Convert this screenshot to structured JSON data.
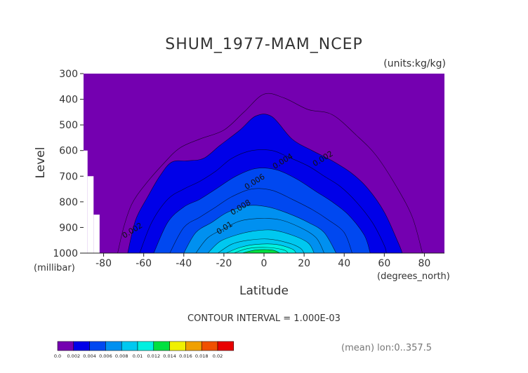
{
  "chart_data": {
    "type": "heatmap",
    "title": "SHUM_1977-MAM_NCEP",
    "units_label": "(units:kg/kg)",
    "ylabel": "Level",
    "yunit_label": "(millibar)",
    "xlabel": "Latitude",
    "xunit_label": "(degrees_north)",
    "xlim": [
      -90,
      90
    ],
    "ylim": [
      300,
      1000
    ],
    "y_inverted": true,
    "xticks": [
      "-80",
      "-60",
      "-40",
      "-20",
      "0",
      "20",
      "40",
      "60",
      "80"
    ],
    "xtick_values": [
      -80,
      -60,
      -40,
      -20,
      0,
      20,
      40,
      60,
      80
    ],
    "yticks": [
      "300",
      "400",
      "500",
      "600",
      "700",
      "800",
      "900",
      "1000"
    ],
    "ytick_values": [
      300,
      400,
      500,
      600,
      700,
      800,
      900,
      1000
    ],
    "contour_interval_text": "CONTOUR INTERVAL = 1.000E-03",
    "footnote": "(mean) lon:0..357.5",
    "levels": [
      0.0,
      0.002,
      0.004,
      0.006,
      0.008,
      0.01,
      0.012,
      0.014,
      0.016,
      0.018,
      0.02
    ],
    "colorbar_labels": [
      "0.0",
      "0.002",
      "0.004",
      "0.006",
      "0.008",
      "0.01",
      "0.012",
      "0.014",
      "0.016",
      "0.018",
      "0.02"
    ],
    "colors": [
      "#7400b0",
      "#0000e8",
      "#0048f0",
      "#0090f0",
      "#00c8f0",
      "#00f0e0",
      "#00e040",
      "#f0f000",
      "#f0a000",
      "#f05000",
      "#e80000"
    ],
    "contour_labels": [
      {
        "text": "0.002",
        "lat": -65,
        "lev": 920
      },
      {
        "text": "0.002",
        "lat": 30,
        "lev": 640
      },
      {
        "text": "0.004",
        "lat": 10,
        "lev": 650
      },
      {
        "text": "0.006",
        "lat": -4,
        "lev": 730
      },
      {
        "text": "0.008",
        "lat": -11,
        "lev": 830
      },
      {
        "text": "0.01",
        "lat": -19,
        "lev": 910
      }
    ],
    "surface_mask": [
      {
        "lat0": -90,
        "lat1": -88,
        "lev_top": 600
      },
      {
        "lat0": -88,
        "lat1": -85,
        "lev_top": 700
      },
      {
        "lat0": -85,
        "lat1": -82,
        "lev_top": 850
      }
    ],
    "profiles": [
      {
        "level": 0.001,
        "points": [
          [
            -73,
            1000
          ],
          [
            -70,
            900
          ],
          [
            -66,
            810
          ],
          [
            -60,
            740
          ],
          [
            -50,
            650
          ],
          [
            -42,
            590
          ],
          [
            -32,
            555
          ],
          [
            -20,
            520
          ],
          [
            -10,
            450
          ],
          [
            0,
            380
          ],
          [
            10,
            395
          ],
          [
            22,
            440
          ],
          [
            34,
            460
          ],
          [
            46,
            540
          ],
          [
            56,
            620
          ],
          [
            66,
            740
          ],
          [
            74,
            860
          ],
          [
            79,
            1000
          ]
        ]
      },
      {
        "level": 0.002,
        "points": [
          [
            -68,
            1000
          ],
          [
            -64,
            870
          ],
          [
            -58,
            780
          ],
          [
            -52,
            700
          ],
          [
            -46,
            645
          ],
          [
            -38,
            640
          ],
          [
            -30,
            630
          ],
          [
            -22,
            580
          ],
          [
            -12,
            520
          ],
          [
            -4,
            465
          ],
          [
            4,
            468
          ],
          [
            14,
            555
          ],
          [
            24,
            600
          ],
          [
            34,
            640
          ],
          [
            44,
            690
          ],
          [
            52,
            750
          ],
          [
            60,
            840
          ],
          [
            67,
            960
          ],
          [
            69,
            1000
          ]
        ]
      },
      {
        "level": 0.003,
        "points": [
          [
            -62,
            1000
          ],
          [
            -56,
            880
          ],
          [
            -48,
            790
          ],
          [
            -40,
            750
          ],
          [
            -32,
            720
          ],
          [
            -24,
            680
          ],
          [
            -16,
            630
          ],
          [
            -6,
            600
          ],
          [
            4,
            600
          ],
          [
            12,
            625
          ],
          [
            22,
            660
          ],
          [
            30,
            700
          ],
          [
            38,
            740
          ],
          [
            46,
            800
          ],
          [
            54,
            880
          ],
          [
            60,
            970
          ],
          [
            61,
            1000
          ]
        ]
      },
      {
        "level": 0.004,
        "points": [
          [
            -55,
            1000
          ],
          [
            -48,
            880
          ],
          [
            -40,
            820
          ],
          [
            -32,
            790
          ],
          [
            -24,
            750
          ],
          [
            -14,
            700
          ],
          [
            -4,
            670
          ],
          [
            6,
            675
          ],
          [
            16,
            710
          ],
          [
            26,
            760
          ],
          [
            34,
            800
          ],
          [
            42,
            850
          ],
          [
            50,
            930
          ],
          [
            53,
            1000
          ]
        ]
      },
      {
        "level": 0.005,
        "points": [
          [
            -47,
            1000
          ],
          [
            -40,
            900
          ],
          [
            -32,
            860
          ],
          [
            -24,
            820
          ],
          [
            -16,
            780
          ],
          [
            -6,
            750
          ],
          [
            4,
            755
          ],
          [
            14,
            790
          ],
          [
            24,
            830
          ],
          [
            32,
            870
          ],
          [
            40,
            920
          ],
          [
            44,
            1000
          ]
        ]
      },
      {
        "level": 0.006,
        "points": [
          [
            -40,
            1000
          ],
          [
            -34,
            920
          ],
          [
            -26,
            880
          ],
          [
            -18,
            840
          ],
          [
            -8,
            815
          ],
          [
            2,
            820
          ],
          [
            12,
            845
          ],
          [
            22,
            880
          ],
          [
            30,
            920
          ],
          [
            36,
            1000
          ]
        ]
      },
      {
        "level": 0.007,
        "points": [
          [
            -34,
            1000
          ],
          [
            -28,
            940
          ],
          [
            -20,
            905
          ],
          [
            -12,
            875
          ],
          [
            -2,
            865
          ],
          [
            8,
            870
          ],
          [
            18,
            900
          ],
          [
            26,
            940
          ],
          [
            30,
            1000
          ]
        ]
      },
      {
        "level": 0.008,
        "points": [
          [
            -28,
            1000
          ],
          [
            -22,
            955
          ],
          [
            -14,
            930
          ],
          [
            -6,
            915
          ],
          [
            4,
            910
          ],
          [
            14,
            930
          ],
          [
            22,
            960
          ],
          [
            25,
            1000
          ]
        ]
      },
      {
        "level": 0.009,
        "points": [
          [
            -23,
            1000
          ],
          [
            -16,
            965
          ],
          [
            -8,
            950
          ],
          [
            2,
            945
          ],
          [
            12,
            960
          ],
          [
            18,
            980
          ],
          [
            20,
            1000
          ]
        ]
      },
      {
        "level": 0.01,
        "points": [
          [
            -19,
            1000
          ],
          [
            -12,
            978
          ],
          [
            -4,
            966
          ],
          [
            6,
            966
          ],
          [
            14,
            984
          ],
          [
            16,
            1000
          ]
        ]
      },
      {
        "level": 0.011,
        "points": [
          [
            -15,
            1000
          ],
          [
            -8,
            982
          ],
          [
            2,
            978
          ],
          [
            10,
            988
          ],
          [
            12,
            1000
          ]
        ]
      },
      {
        "level": 0.012,
        "points": [
          [
            -11,
            1000
          ],
          [
            -4,
            988
          ],
          [
            4,
            988
          ],
          [
            8,
            1000
          ]
        ]
      }
    ]
  }
}
